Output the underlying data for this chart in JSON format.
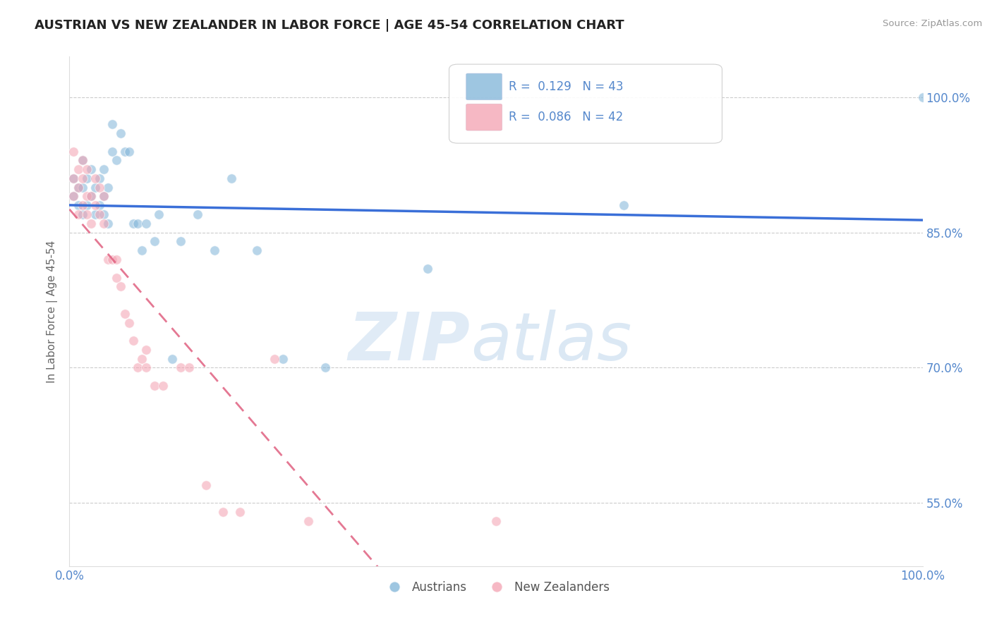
{
  "title": "AUSTRIAN VS NEW ZEALANDER IN LABOR FORCE | AGE 45-54 CORRELATION CHART",
  "source": "Source: ZipAtlas.com",
  "ylabel": "In Labor Force | Age 45-54",
  "xlim": [
    0.0,
    1.0
  ],
  "ylim": [
    0.48,
    1.045
  ],
  "yticks": [
    0.55,
    0.7,
    0.85,
    1.0
  ],
  "ytick_labels": [
    "55.0%",
    "70.0%",
    "85.0%",
    "100.0%"
  ],
  "legend_R_blue": "0.129",
  "legend_N_blue": "43",
  "legend_R_pink": "0.086",
  "legend_N_pink": "42",
  "blue_color": "#7EB3D8",
  "pink_color": "#F4A0B0",
  "trend_blue_color": "#3A6FD8",
  "trend_pink_color": "#E06080",
  "watermark_zip": "ZIP",
  "watermark_atlas": "atlas",
  "blue_points_x": [
    0.005,
    0.005,
    0.01,
    0.01,
    0.015,
    0.015,
    0.015,
    0.02,
    0.02,
    0.025,
    0.025,
    0.03,
    0.03,
    0.035,
    0.035,
    0.04,
    0.04,
    0.04,
    0.045,
    0.045,
    0.05,
    0.05,
    0.055,
    0.06,
    0.065,
    0.07,
    0.075,
    0.08,
    0.085,
    0.09,
    0.1,
    0.105,
    0.12,
    0.13,
    0.15,
    0.17,
    0.19,
    0.22,
    0.25,
    0.3,
    0.42,
    0.65,
    1.0
  ],
  "blue_points_y": [
    0.89,
    0.91,
    0.88,
    0.9,
    0.87,
    0.9,
    0.93,
    0.88,
    0.91,
    0.89,
    0.92,
    0.87,
    0.9,
    0.88,
    0.91,
    0.87,
    0.89,
    0.92,
    0.86,
    0.9,
    0.94,
    0.97,
    0.93,
    0.96,
    0.94,
    0.94,
    0.86,
    0.86,
    0.83,
    0.86,
    0.84,
    0.87,
    0.71,
    0.84,
    0.87,
    0.83,
    0.91,
    0.83,
    0.71,
    0.7,
    0.81,
    0.88,
    1.0
  ],
  "pink_points_x": [
    0.005,
    0.005,
    0.005,
    0.01,
    0.01,
    0.01,
    0.015,
    0.015,
    0.015,
    0.02,
    0.02,
    0.02,
    0.025,
    0.025,
    0.03,
    0.03,
    0.035,
    0.035,
    0.04,
    0.04,
    0.045,
    0.05,
    0.055,
    0.055,
    0.06,
    0.065,
    0.07,
    0.075,
    0.08,
    0.085,
    0.09,
    0.09,
    0.1,
    0.11,
    0.13,
    0.14,
    0.16,
    0.18,
    0.2,
    0.24,
    0.28,
    0.5
  ],
  "pink_points_y": [
    0.89,
    0.91,
    0.94,
    0.87,
    0.9,
    0.92,
    0.88,
    0.91,
    0.93,
    0.87,
    0.89,
    0.92,
    0.86,
    0.89,
    0.88,
    0.91,
    0.87,
    0.9,
    0.86,
    0.89,
    0.82,
    0.82,
    0.8,
    0.82,
    0.79,
    0.76,
    0.75,
    0.73,
    0.7,
    0.71,
    0.7,
    0.72,
    0.68,
    0.68,
    0.7,
    0.7,
    0.57,
    0.54,
    0.54,
    0.71,
    0.53,
    0.53
  ],
  "grid_color": "#CCCCCC",
  "background_color": "#FFFFFF",
  "marker_size": 95,
  "alpha": 0.55,
  "title_fontsize": 13,
  "source_color": "#999999",
  "axis_label_color": "#5588CC",
  "ylabel_color": "#666666"
}
